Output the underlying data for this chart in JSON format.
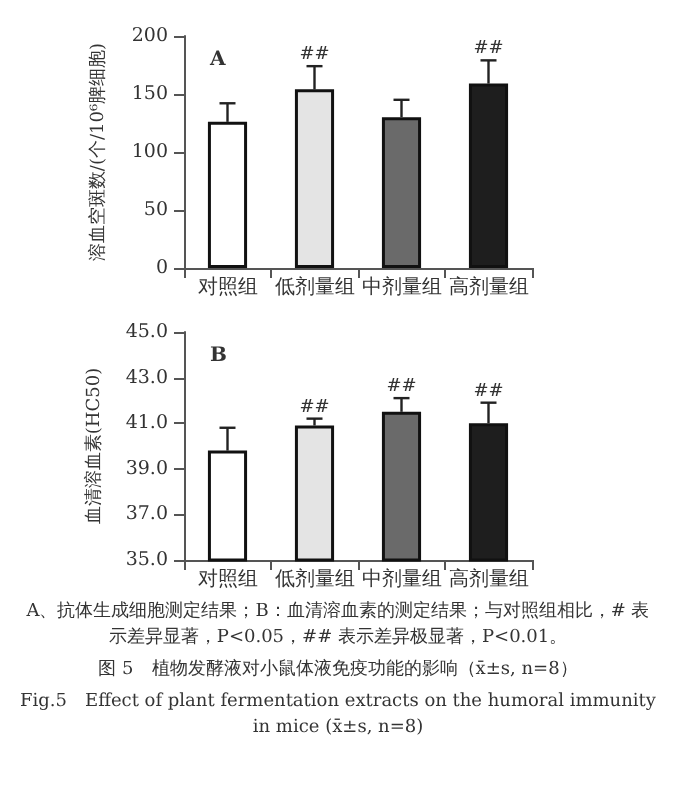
{
  "chart_data": [
    {
      "type": "bar",
      "title": "A",
      "ylabel": "溶血空斑数/(个/10⁶脾细胞)",
      "categories": [
        "对照组",
        "低剂量组",
        "中剂量组",
        "高剂量组"
      ],
      "values": [
        126,
        154,
        130,
        159
      ],
      "errors": [
        16,
        20,
        15,
        20
      ],
      "colors": [
        "#ffffff",
        "#e4e4e4",
        "#6a6a6a",
        "#1e1e1e"
      ],
      "ylim": [
        0,
        200
      ],
      "yticks": [
        0,
        50,
        100,
        150,
        200
      ],
      "grid": false,
      "annotations": [
        {
          "text": "##",
          "x": "低剂量组",
          "y": 174
        },
        {
          "text": "##",
          "x": "高剂量组",
          "y": 179
        }
      ]
    },
    {
      "type": "bar",
      "title": "B",
      "ylabel": "血清溶血素(HC50)",
      "categories": [
        "对照组",
        "低剂量组",
        "中剂量组",
        "高剂量组"
      ],
      "values": [
        39.8,
        40.9,
        41.5,
        41.0
      ],
      "errors": [
        1.0,
        0.3,
        0.6,
        0.9
      ],
      "colors": [
        "#ffffff",
        "#e4e4e4",
        "#6a6a6a",
        "#1e1e1e"
      ],
      "ylim": [
        35,
        45
      ],
      "yticks": [
        {
          "value": 35,
          "label": "35.0"
        },
        {
          "value": 37,
          "label": "37.0"
        },
        {
          "value": 39,
          "label": "39.0"
        },
        {
          "value": 41,
          "label": "41.0"
        },
        {
          "value": 43,
          "label": "43.0"
        },
        {
          "value": 45,
          "label": "45.0"
        }
      ],
      "grid": false,
      "annotations": [
        {
          "text": "##",
          "x": "低剂量组",
          "y": 41.2
        },
        {
          "text": "##",
          "x": "中剂量组",
          "y": 42.1
        },
        {
          "text": "##",
          "x": "高剂量组",
          "y": 41.9
        },
        "A、抗体生成细胞测定结果；B：血清溶血素的测定结果；与对照组相比，# 表示差异显著，P<0.05，## 表示差异极显著，P<0.01。",
        "图 5　植物发酵液对小鼠体液免疫功能的影响（x̄±s, n=8）",
        "Fig.5　Effect of plant fermentation extracts on the humoral immunity in mice (x̄±s, n=8)"
      ]
    }
  ]
}
